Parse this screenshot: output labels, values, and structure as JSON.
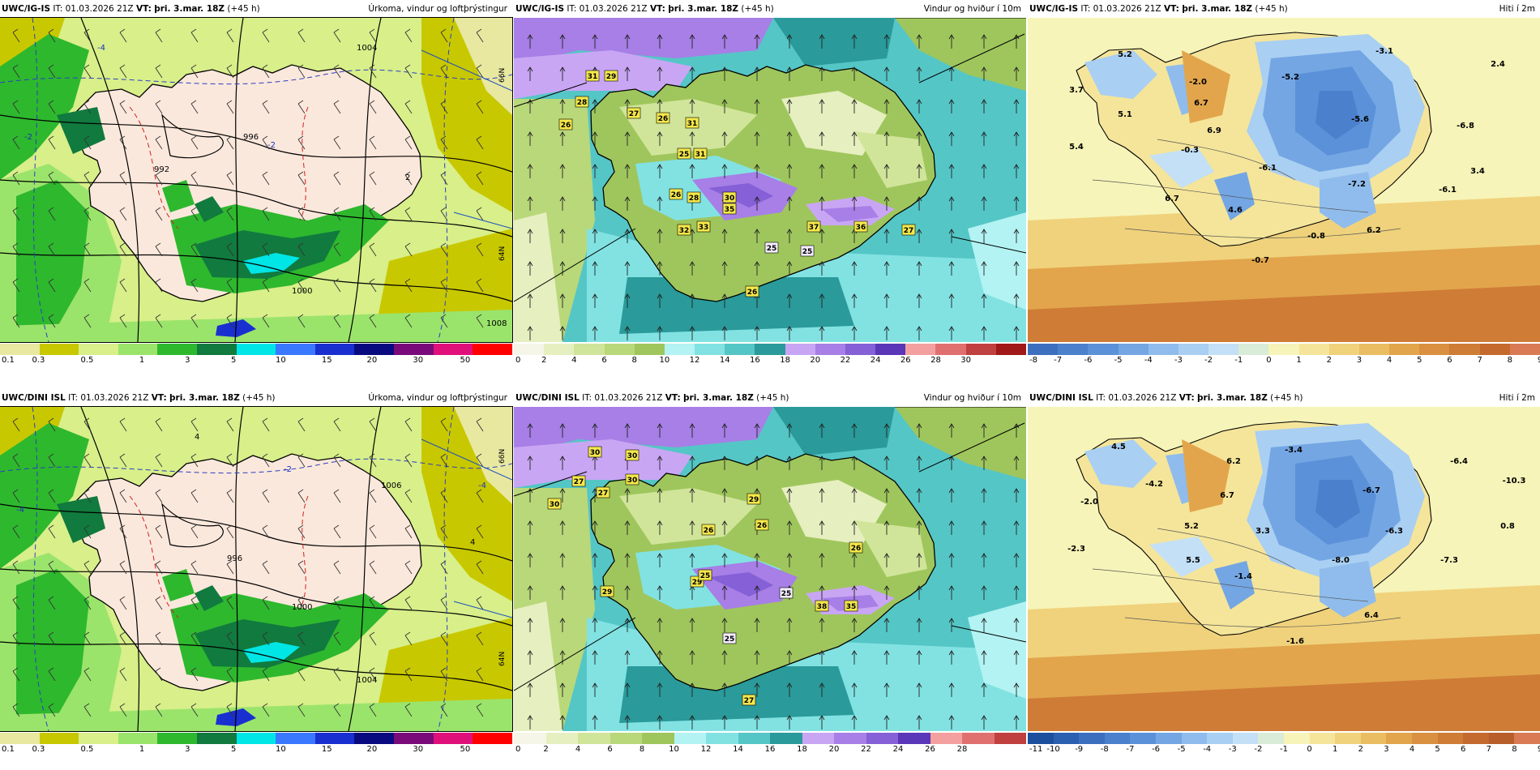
{
  "panels": [
    {
      "model": "UWC/IG-IS",
      "it_label": "IT:",
      "it_value": "01.03.2026 21Z",
      "vt_label": "VT:",
      "vt_value": "þri. 3.mar. 18Z",
      "lead": "(+45 h)",
      "product": "Úrkoma, vindur og loftþrýstingur",
      "colorbar_colors": [
        "#e8e8a0",
        "#c8c800",
        "#d8ef8a",
        "#9be46b",
        "#2eb82e",
        "#117a3e",
        "#00e5e5",
        "#3a78ff",
        "#1a2fd0",
        "#0a0a80",
        "#7a0a7a",
        "#e0107a",
        "#ff0000"
      ],
      "colorbar_labels": [
        "0.1",
        "0.3",
        "0.5",
        "1",
        "3",
        "5",
        "10",
        "15",
        "20",
        "30",
        "50"
      ],
      "map_labels": [
        "992",
        "996",
        "1000",
        "1004",
        "1008",
        "-2",
        "-4",
        "2",
        "-2",
        "66N",
        "64N"
      ]
    },
    {
      "model": "UWC/IG-IS",
      "it_label": "IT:",
      "it_value": "01.03.2026 21Z",
      "vt_label": "VT:",
      "vt_value": "þri. 3.mar. 18Z",
      "lead": "(+45 h)",
      "product": "Vindur og hviður í 10m",
      "colorbar_colors": [
        "#f5f5e8",
        "#e6efc0",
        "#d0e59a",
        "#b9d87a",
        "#9fc65c",
        "#b3f3f3",
        "#82e2e2",
        "#55c6c6",
        "#2a9a9a",
        "#c9a6f4",
        "#a77fe6",
        "#8560d6",
        "#5a36b8",
        "#f4a0a0",
        "#e07070",
        "#c04040",
        "#a01818"
      ],
      "colorbar_labels": [
        "0",
        "2",
        "4",
        "6",
        "8",
        "10",
        "12",
        "14",
        "16",
        "18",
        "20",
        "22",
        "24",
        "26",
        "28",
        "30"
      ],
      "badges": [
        "31",
        "29",
        "28",
        "27",
        "26",
        "26",
        "31",
        "25",
        "31",
        "26",
        "28",
        "30",
        "35",
        "32",
        "33",
        "37",
        "36",
        "27",
        "26",
        "25",
        "25"
      ]
    },
    {
      "model": "UWC/IG-IS",
      "it_label": "IT:",
      "it_value": "01.03.2026 21Z",
      "vt_label": "VT:",
      "vt_value": "þri. 3.mar. 18Z",
      "lead": "(+45 h)",
      "product": "Hiti í 2m",
      "colorbar_colors": [
        "#3d6fbf",
        "#4a80cc",
        "#5b91d8",
        "#73a6e3",
        "#8fbcec",
        "#a9cff2",
        "#c3e0f6",
        "#d8ecd8",
        "#f6f4b8",
        "#f5e59a",
        "#f0d27c",
        "#eabd62",
        "#e2a54c",
        "#d99040",
        "#cf7c36",
        "#c46a2e",
        "#d97a54"
      ],
      "colorbar_labels": [
        "-8",
        "-7",
        "-6",
        "-5",
        "-4",
        "-3",
        "-2",
        "-1",
        "0",
        "1",
        "2",
        "3",
        "4",
        "5",
        "6",
        "7",
        "8",
        "9"
      ],
      "temps": [
        "5.2",
        "-2.0",
        "3.7",
        "5.1",
        "5.4",
        "-0.3",
        "6.7",
        "6.9",
        "-5.2",
        "-3.1",
        "2.4",
        "-6.8",
        "-5.6",
        "3.4",
        "-6.1",
        "-7.2",
        "-6.1",
        "4.6",
        "6.7",
        "-0.8",
        "6.2",
        "-0.7"
      ]
    },
    {
      "model": "UWC/DINI ISL",
      "it_label": "IT:",
      "it_value": "01.03.2026 21Z",
      "vt_label": "VT:",
      "vt_value": "þri. 3.mar. 18Z",
      "lead": "(+45 h)",
      "product": "Úrkoma, vindur og loftþrýstingur",
      "colorbar_colors": [
        "#e8e8a0",
        "#c8c800",
        "#d8ef8a",
        "#9be46b",
        "#2eb82e",
        "#117a3e",
        "#00e5e5",
        "#3a78ff",
        "#1a2fd0",
        "#0a0a80",
        "#7a0a7a",
        "#e0107a",
        "#ff0000"
      ],
      "colorbar_labels": [
        "0.1",
        "0.3",
        "0.5",
        "1",
        "3",
        "5",
        "10",
        "15",
        "20",
        "30",
        "50"
      ],
      "map_labels": [
        "996",
        "1000",
        "1004",
        "1006",
        "-4",
        "-2",
        "4",
        "-4",
        "4",
        "66N",
        "64N"
      ]
    },
    {
      "model": "UWC/DINI ISL",
      "it_label": "IT:",
      "it_value": "01.03.2026 21Z",
      "vt_label": "VT:",
      "vt_value": "þri. 3.mar. 18Z",
      "lead": "(+45 h)",
      "product": "Vindur og hviður í 10m",
      "colorbar_colors": [
        "#f5f5e8",
        "#e6efc0",
        "#d0e59a",
        "#b9d87a",
        "#9fc65c",
        "#b3f3f3",
        "#82e2e2",
        "#55c6c6",
        "#2a9a9a",
        "#c9a6f4",
        "#a77fe6",
        "#8560d6",
        "#5a36b8",
        "#f4a0a0",
        "#e07070",
        "#c04040"
      ],
      "colorbar_labels": [
        "0",
        "2",
        "4",
        "6",
        "8",
        "10",
        "12",
        "14",
        "16",
        "18",
        "20",
        "22",
        "24",
        "26",
        "28"
      ],
      "badges": [
        "30",
        "30",
        "27",
        "27",
        "30",
        "26",
        "30",
        "29",
        "26",
        "26",
        "29",
        "29",
        "25",
        "38",
        "35",
        "25",
        "25",
        "27"
      ]
    },
    {
      "model": "UWC/DINI ISL",
      "it_label": "IT:",
      "it_value": "01.03.2026 21Z",
      "vt_label": "VT:",
      "vt_value": "þri. 3.mar. 18Z",
      "lead": "(+45 h)",
      "product": "Hiti í 2m",
      "colorbar_colors": [
        "#1d4f9f",
        "#2b5fb0",
        "#3d6fbf",
        "#4a80cc",
        "#5b91d8",
        "#73a6e3",
        "#8fbcec",
        "#a9cff2",
        "#c3e0f6",
        "#d8ecd8",
        "#f6f4b8",
        "#f5e59a",
        "#f0d27c",
        "#eabd62",
        "#e2a54c",
        "#d99040",
        "#cf7c36",
        "#c46a2e",
        "#b85e2a",
        "#d97a54"
      ],
      "colorbar_labels": [
        "-11",
        "-10",
        "-9",
        "-8",
        "-7",
        "-6",
        "-5",
        "-4",
        "-3",
        "-2",
        "-1",
        "0",
        "1",
        "2",
        "3",
        "4",
        "5",
        "6",
        "7",
        "8",
        "9"
      ],
      "temps": [
        "4.5",
        "-3.4",
        "6.2",
        "-6.4",
        "-4.2",
        "-10.3",
        "-2.0",
        "6.7",
        "-6.7",
        "5.2",
        "3.3",
        "-6.3",
        "0.8",
        "-2.3",
        "5.5",
        "-8.0",
        "-7.3",
        "-1.4",
        "6.4",
        "-1.6"
      ]
    }
  ]
}
